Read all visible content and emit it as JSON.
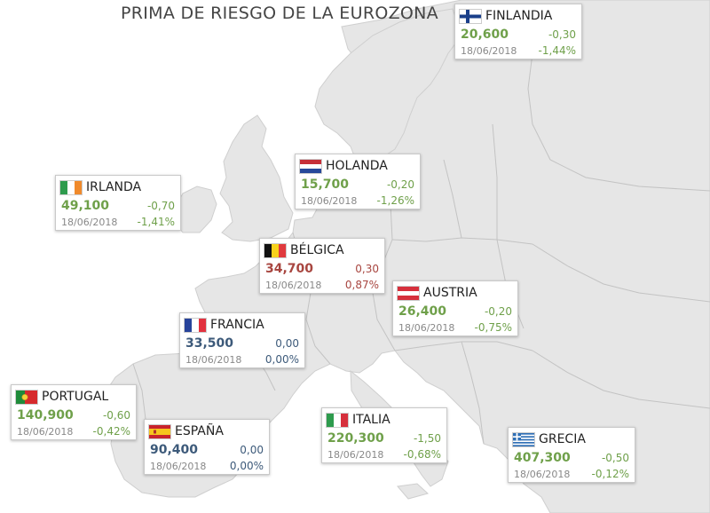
{
  "title": "PRIMA DE RIESGO DE LA EUROZONA",
  "colors": {
    "sea": "#ffffff",
    "land": "#e6e6e6",
    "border": "#bdbdbd",
    "down": "#6fa04a",
    "up": "#a84640",
    "flat": "#3d5a7a"
  },
  "countries": [
    {
      "id": "finlandia",
      "name": "FINLANDIA",
      "value": "20,600",
      "change": "-0,30",
      "date": "18/06/2018",
      "pct": "-1,44%",
      "trend": "down",
      "flag": "finland-flag-icon"
    },
    {
      "id": "holanda",
      "name": "HOLANDA",
      "value": "15,700",
      "change": "-0,20",
      "date": "18/06/2018",
      "pct": "-1,26%",
      "trend": "down",
      "flag": "netherlands-flag-icon"
    },
    {
      "id": "irlanda",
      "name": "IRLANDA",
      "value": "49,100",
      "change": "-0,70",
      "date": "18/06/2018",
      "pct": "-1,41%",
      "trend": "down",
      "flag": "ireland-flag-icon"
    },
    {
      "id": "belgica",
      "name": "BÉLGICA",
      "value": "34,700",
      "change": "0,30",
      "date": "18/06/2018",
      "pct": "0,87%",
      "trend": "up",
      "flag": "belgium-flag-icon"
    },
    {
      "id": "austria",
      "name": "AUSTRIA",
      "value": "26,400",
      "change": "-0,20",
      "date": "18/06/2018",
      "pct": "-0,75%",
      "trend": "down",
      "flag": "austria-flag-icon"
    },
    {
      "id": "francia",
      "name": "FRANCIA",
      "value": "33,500",
      "change": "0,00",
      "date": "18/06/2018",
      "pct": "0,00%",
      "trend": "flat",
      "flag": "france-flag-icon"
    },
    {
      "id": "portugal",
      "name": "PORTUGAL",
      "value": "140,900",
      "change": "-0,60",
      "date": "18/06/2018",
      "pct": "-0,42%",
      "trend": "down",
      "flag": "portugal-flag-icon"
    },
    {
      "id": "espana",
      "name": "ESPAÑA",
      "value": "90,400",
      "change": "0,00",
      "date": "18/06/2018",
      "pct": "0,00%",
      "trend": "flat",
      "flag": "spain-flag-icon"
    },
    {
      "id": "italia",
      "name": "ITALIA",
      "value": "220,300",
      "change": "-1,50",
      "date": "18/06/2018",
      "pct": "-0,68%",
      "trend": "down",
      "flag": "italy-flag-icon"
    },
    {
      "id": "grecia",
      "name": "GRECIA",
      "value": "407,300",
      "change": "-0,50",
      "date": "18/06/2018",
      "pct": "-0,12%",
      "trend": "down",
      "flag": "greece-flag-icon"
    }
  ]
}
